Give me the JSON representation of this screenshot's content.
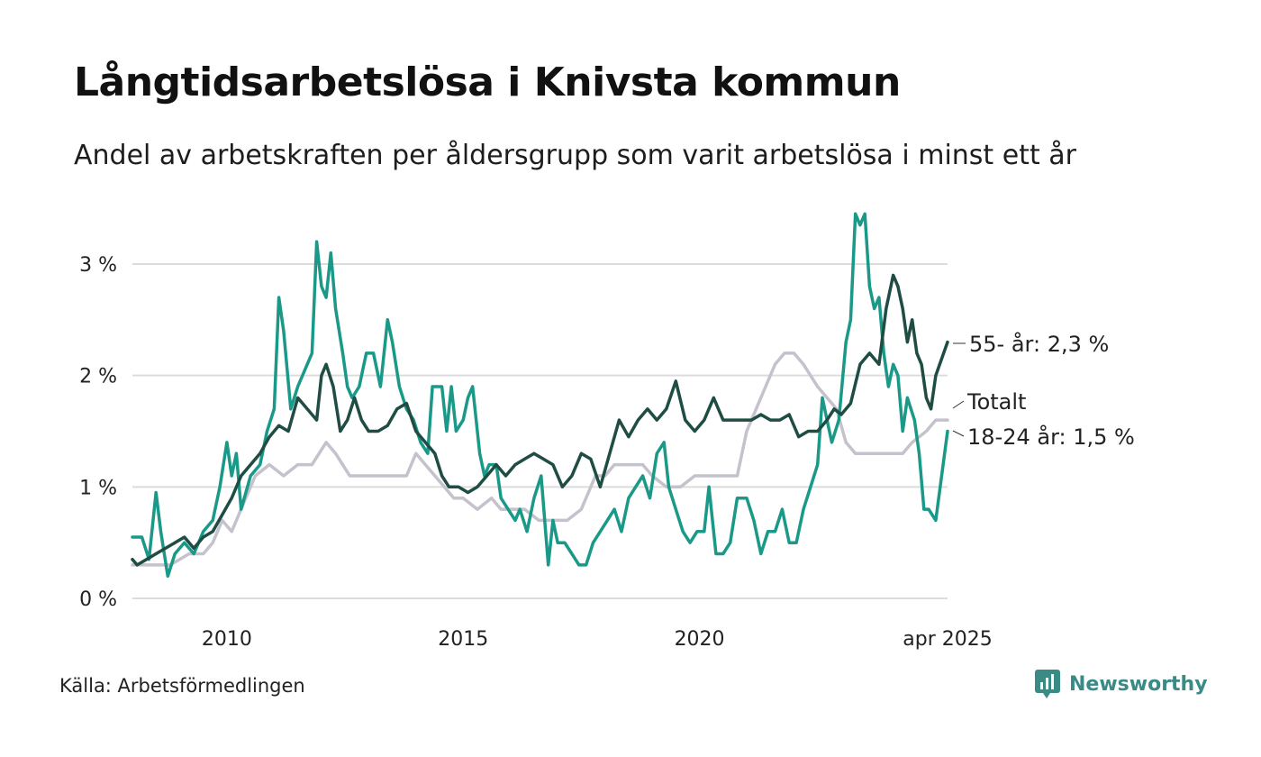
{
  "title": "Långtidsarbetslösa i Knivsta kommun",
  "subtitle": "Andel av arbetskraften per åldersgrupp som varit arbetslösa i minst ett år",
  "source": "Källa: Arbetsförmedlingen",
  "brand": {
    "name": "Newsworthy",
    "icon": "newsworthy-logo-icon",
    "color": "#3a8a85"
  },
  "chart_data": {
    "type": "line",
    "title": "Långtidsarbetslösa i Knivsta kommun",
    "subtitle": "Andel av arbetskraften per åldersgrupp som varit arbetslösa i minst ett år",
    "xlabel": "",
    "ylabel": "",
    "ylim": [
      0,
      3.5
    ],
    "xlim": [
      2008.0,
      2025.25
    ],
    "grid": true,
    "y_ticks": [
      0,
      1,
      2,
      3
    ],
    "y_tick_labels": [
      "0 %",
      "1 %",
      "2 %",
      "3 %"
    ],
    "x_ticks": [
      2010,
      2015,
      2020,
      2025.25
    ],
    "x_tick_labels": [
      "2010",
      "2015",
      "2020",
      "apr 2025"
    ],
    "series": [
      {
        "name": "Totalt",
        "label": "Totalt",
        "color": "#c4c2cc",
        "points": [
          [
            2008.0,
            0.3
          ],
          [
            2008.5,
            0.3
          ],
          [
            2008.8,
            0.3
          ],
          [
            2009.2,
            0.4
          ],
          [
            2009.5,
            0.4
          ],
          [
            2009.7,
            0.5
          ],
          [
            2009.9,
            0.7
          ],
          [
            2010.1,
            0.6
          ],
          [
            2010.4,
            0.9
          ],
          [
            2010.6,
            1.1
          ],
          [
            2010.9,
            1.2
          ],
          [
            2011.2,
            1.1
          ],
          [
            2011.5,
            1.2
          ],
          [
            2011.8,
            1.2
          ],
          [
            2012.1,
            1.4
          ],
          [
            2012.3,
            1.3
          ],
          [
            2012.6,
            1.1
          ],
          [
            2012.9,
            1.1
          ],
          [
            2013.2,
            1.1
          ],
          [
            2013.5,
            1.1
          ],
          [
            2013.8,
            1.1
          ],
          [
            2014.0,
            1.3
          ],
          [
            2014.2,
            1.2
          ],
          [
            2014.4,
            1.1
          ],
          [
            2014.6,
            1.0
          ],
          [
            2014.8,
            0.9
          ],
          [
            2015.0,
            0.9
          ],
          [
            2015.3,
            0.8
          ],
          [
            2015.6,
            0.9
          ],
          [
            2015.8,
            0.8
          ],
          [
            2016.0,
            0.8
          ],
          [
            2016.3,
            0.8
          ],
          [
            2016.6,
            0.7
          ],
          [
            2016.9,
            0.7
          ],
          [
            2017.2,
            0.7
          ],
          [
            2017.5,
            0.8
          ],
          [
            2017.8,
            1.1
          ],
          [
            2018.0,
            1.1
          ],
          [
            2018.2,
            1.2
          ],
          [
            2018.5,
            1.2
          ],
          [
            2018.8,
            1.2
          ],
          [
            2019.0,
            1.1
          ],
          [
            2019.3,
            1.0
          ],
          [
            2019.6,
            1.0
          ],
          [
            2019.9,
            1.1
          ],
          [
            2020.2,
            1.1
          ],
          [
            2020.5,
            1.1
          ],
          [
            2020.8,
            1.1
          ],
          [
            2021.0,
            1.5
          ],
          [
            2021.2,
            1.7
          ],
          [
            2021.4,
            1.9
          ],
          [
            2021.6,
            2.1
          ],
          [
            2021.8,
            2.2
          ],
          [
            2022.0,
            2.2
          ],
          [
            2022.2,
            2.1
          ],
          [
            2022.5,
            1.9
          ],
          [
            2022.7,
            1.8
          ],
          [
            2022.9,
            1.7
          ],
          [
            2023.1,
            1.4
          ],
          [
            2023.3,
            1.3
          ],
          [
            2023.6,
            1.3
          ],
          [
            2023.9,
            1.3
          ],
          [
            2024.1,
            1.3
          ],
          [
            2024.3,
            1.3
          ],
          [
            2024.5,
            1.4
          ],
          [
            2024.8,
            1.5
          ],
          [
            2025.0,
            1.6
          ],
          [
            2025.25,
            1.6
          ]
        ]
      },
      {
        "name": "18-24 år",
        "label": "18-24 år: 1,5 %",
        "color": "#1a9988",
        "points": [
          [
            2008.0,
            0.55
          ],
          [
            2008.2,
            0.55
          ],
          [
            2008.35,
            0.35
          ],
          [
            2008.5,
            0.95
          ],
          [
            2008.6,
            0.6
          ],
          [
            2008.75,
            0.2
          ],
          [
            2008.9,
            0.4
          ],
          [
            2009.1,
            0.5
          ],
          [
            2009.3,
            0.4
          ],
          [
            2009.5,
            0.6
          ],
          [
            2009.7,
            0.7
          ],
          [
            2009.85,
            1.0
          ],
          [
            2010.0,
            1.4
          ],
          [
            2010.1,
            1.1
          ],
          [
            2010.2,
            1.3
          ],
          [
            2010.3,
            0.8
          ],
          [
            2010.5,
            1.1
          ],
          [
            2010.7,
            1.2
          ],
          [
            2010.85,
            1.5
          ],
          [
            2011.0,
            1.7
          ],
          [
            2011.1,
            2.7
          ],
          [
            2011.2,
            2.4
          ],
          [
            2011.35,
            1.7
          ],
          [
            2011.5,
            1.9
          ],
          [
            2011.7,
            2.1
          ],
          [
            2011.8,
            2.2
          ],
          [
            2011.9,
            3.2
          ],
          [
            2012.0,
            2.8
          ],
          [
            2012.1,
            2.7
          ],
          [
            2012.2,
            3.1
          ],
          [
            2012.3,
            2.6
          ],
          [
            2012.45,
            2.2
          ],
          [
            2012.55,
            1.9
          ],
          [
            2012.65,
            1.8
          ],
          [
            2012.8,
            1.9
          ],
          [
            2012.95,
            2.2
          ],
          [
            2013.1,
            2.2
          ],
          [
            2013.25,
            1.9
          ],
          [
            2013.4,
            2.5
          ],
          [
            2013.5,
            2.3
          ],
          [
            2013.65,
            1.9
          ],
          [
            2013.8,
            1.7
          ],
          [
            2013.95,
            1.6
          ],
          [
            2014.1,
            1.4
          ],
          [
            2014.25,
            1.3
          ],
          [
            2014.35,
            1.9
          ],
          [
            2014.55,
            1.9
          ],
          [
            2014.65,
            1.5
          ],
          [
            2014.75,
            1.9
          ],
          [
            2014.85,
            1.5
          ],
          [
            2015.0,
            1.6
          ],
          [
            2015.1,
            1.8
          ],
          [
            2015.2,
            1.9
          ],
          [
            2015.35,
            1.3
          ],
          [
            2015.45,
            1.1
          ],
          [
            2015.55,
            1.2
          ],
          [
            2015.7,
            1.2
          ],
          [
            2015.8,
            0.9
          ],
          [
            2015.95,
            0.8
          ],
          [
            2016.1,
            0.7
          ],
          [
            2016.2,
            0.8
          ],
          [
            2016.35,
            0.6
          ],
          [
            2016.5,
            0.9
          ],
          [
            2016.65,
            1.1
          ],
          [
            2016.8,
            0.3
          ],
          [
            2016.9,
            0.7
          ],
          [
            2017.0,
            0.5
          ],
          [
            2017.15,
            0.5
          ],
          [
            2017.3,
            0.4
          ],
          [
            2017.45,
            0.3
          ],
          [
            2017.6,
            0.3
          ],
          [
            2017.75,
            0.5
          ],
          [
            2017.9,
            0.6
          ],
          [
            2018.05,
            0.7
          ],
          [
            2018.2,
            0.8
          ],
          [
            2018.35,
            0.6
          ],
          [
            2018.5,
            0.9
          ],
          [
            2018.65,
            1.0
          ],
          [
            2018.8,
            1.1
          ],
          [
            2018.95,
            0.9
          ],
          [
            2019.1,
            1.3
          ],
          [
            2019.25,
            1.4
          ],
          [
            2019.35,
            1.0
          ],
          [
            2019.5,
            0.8
          ],
          [
            2019.65,
            0.6
          ],
          [
            2019.8,
            0.5
          ],
          [
            2019.95,
            0.6
          ],
          [
            2020.1,
            0.6
          ],
          [
            2020.2,
            1.0
          ],
          [
            2020.35,
            0.4
          ],
          [
            2020.5,
            0.4
          ],
          [
            2020.65,
            0.5
          ],
          [
            2020.8,
            0.9
          ],
          [
            2021.0,
            0.9
          ],
          [
            2021.15,
            0.7
          ],
          [
            2021.3,
            0.4
          ],
          [
            2021.45,
            0.6
          ],
          [
            2021.6,
            0.6
          ],
          [
            2021.75,
            0.8
          ],
          [
            2021.9,
            0.5
          ],
          [
            2022.05,
            0.5
          ],
          [
            2022.2,
            0.8
          ],
          [
            2022.35,
            1.0
          ],
          [
            2022.5,
            1.2
          ],
          [
            2022.6,
            1.8
          ],
          [
            2022.7,
            1.6
          ],
          [
            2022.8,
            1.4
          ],
          [
            2022.95,
            1.6
          ],
          [
            2023.1,
            2.3
          ],
          [
            2023.2,
            2.5
          ],
          [
            2023.3,
            3.45
          ],
          [
            2023.4,
            3.35
          ],
          [
            2023.5,
            3.45
          ],
          [
            2023.6,
            2.8
          ],
          [
            2023.7,
            2.6
          ],
          [
            2023.8,
            2.7
          ],
          [
            2023.9,
            2.2
          ],
          [
            2024.0,
            1.9
          ],
          [
            2024.1,
            2.1
          ],
          [
            2024.2,
            2.0
          ],
          [
            2024.3,
            1.5
          ],
          [
            2024.4,
            1.8
          ],
          [
            2024.55,
            1.6
          ],
          [
            2024.65,
            1.3
          ],
          [
            2024.75,
            0.8
          ],
          [
            2024.85,
            0.8
          ],
          [
            2025.0,
            0.7
          ],
          [
            2025.25,
            1.5
          ]
        ]
      },
      {
        "name": "55- år",
        "label": "55- år: 2,3 %",
        "color": "#1f4d43",
        "points": [
          [
            2008.0,
            0.35
          ],
          [
            2008.1,
            0.3
          ],
          [
            2008.3,
            0.35
          ],
          [
            2008.5,
            0.4
          ],
          [
            2008.7,
            0.45
          ],
          [
            2008.9,
            0.5
          ],
          [
            2009.1,
            0.55
          ],
          [
            2009.3,
            0.45
          ],
          [
            2009.5,
            0.55
          ],
          [
            2009.7,
            0.6
          ],
          [
            2009.9,
            0.75
          ],
          [
            2010.1,
            0.9
          ],
          [
            2010.3,
            1.1
          ],
          [
            2010.5,
            1.2
          ],
          [
            2010.7,
            1.3
          ],
          [
            2010.9,
            1.45
          ],
          [
            2011.1,
            1.55
          ],
          [
            2011.3,
            1.5
          ],
          [
            2011.5,
            1.8
          ],
          [
            2011.7,
            1.7
          ],
          [
            2011.9,
            1.6
          ],
          [
            2012.0,
            2.0
          ],
          [
            2012.1,
            2.1
          ],
          [
            2012.25,
            1.9
          ],
          [
            2012.4,
            1.5
          ],
          [
            2012.55,
            1.6
          ],
          [
            2012.7,
            1.8
          ],
          [
            2012.85,
            1.6
          ],
          [
            2013.0,
            1.5
          ],
          [
            2013.2,
            1.5
          ],
          [
            2013.4,
            1.55
          ],
          [
            2013.6,
            1.7
          ],
          [
            2013.8,
            1.75
          ],
          [
            2014.0,
            1.5
          ],
          [
            2014.2,
            1.4
          ],
          [
            2014.4,
            1.3
          ],
          [
            2014.55,
            1.1
          ],
          [
            2014.7,
            1.0
          ],
          [
            2014.9,
            1.0
          ],
          [
            2015.1,
            0.95
          ],
          [
            2015.3,
            1.0
          ],
          [
            2015.5,
            1.1
          ],
          [
            2015.7,
            1.2
          ],
          [
            2015.9,
            1.1
          ],
          [
            2016.1,
            1.2
          ],
          [
            2016.3,
            1.25
          ],
          [
            2016.5,
            1.3
          ],
          [
            2016.7,
            1.25
          ],
          [
            2016.9,
            1.2
          ],
          [
            2017.1,
            1.0
          ],
          [
            2017.3,
            1.1
          ],
          [
            2017.5,
            1.3
          ],
          [
            2017.7,
            1.25
          ],
          [
            2017.9,
            1.0
          ],
          [
            2018.1,
            1.3
          ],
          [
            2018.3,
            1.6
          ],
          [
            2018.5,
            1.45
          ],
          [
            2018.7,
            1.6
          ],
          [
            2018.9,
            1.7
          ],
          [
            2019.1,
            1.6
          ],
          [
            2019.3,
            1.7
          ],
          [
            2019.5,
            1.95
          ],
          [
            2019.7,
            1.6
          ],
          [
            2019.9,
            1.5
          ],
          [
            2020.1,
            1.6
          ],
          [
            2020.3,
            1.8
          ],
          [
            2020.5,
            1.6
          ],
          [
            2020.7,
            1.6
          ],
          [
            2020.9,
            1.6
          ],
          [
            2021.1,
            1.6
          ],
          [
            2021.3,
            1.65
          ],
          [
            2021.5,
            1.6
          ],
          [
            2021.7,
            1.6
          ],
          [
            2021.9,
            1.65
          ],
          [
            2022.1,
            1.45
          ],
          [
            2022.3,
            1.5
          ],
          [
            2022.5,
            1.5
          ],
          [
            2022.7,
            1.6
          ],
          [
            2022.85,
            1.7
          ],
          [
            2023.0,
            1.65
          ],
          [
            2023.2,
            1.75
          ],
          [
            2023.4,
            2.1
          ],
          [
            2023.6,
            2.2
          ],
          [
            2023.8,
            2.1
          ],
          [
            2023.95,
            2.6
          ],
          [
            2024.1,
            2.9
          ],
          [
            2024.2,
            2.8
          ],
          [
            2024.3,
            2.6
          ],
          [
            2024.4,
            2.3
          ],
          [
            2024.5,
            2.5
          ],
          [
            2024.6,
            2.2
          ],
          [
            2024.7,
            2.1
          ],
          [
            2024.8,
            1.8
          ],
          [
            2024.9,
            1.7
          ],
          [
            2025.0,
            2.0
          ],
          [
            2025.25,
            2.3
          ]
        ]
      }
    ]
  }
}
